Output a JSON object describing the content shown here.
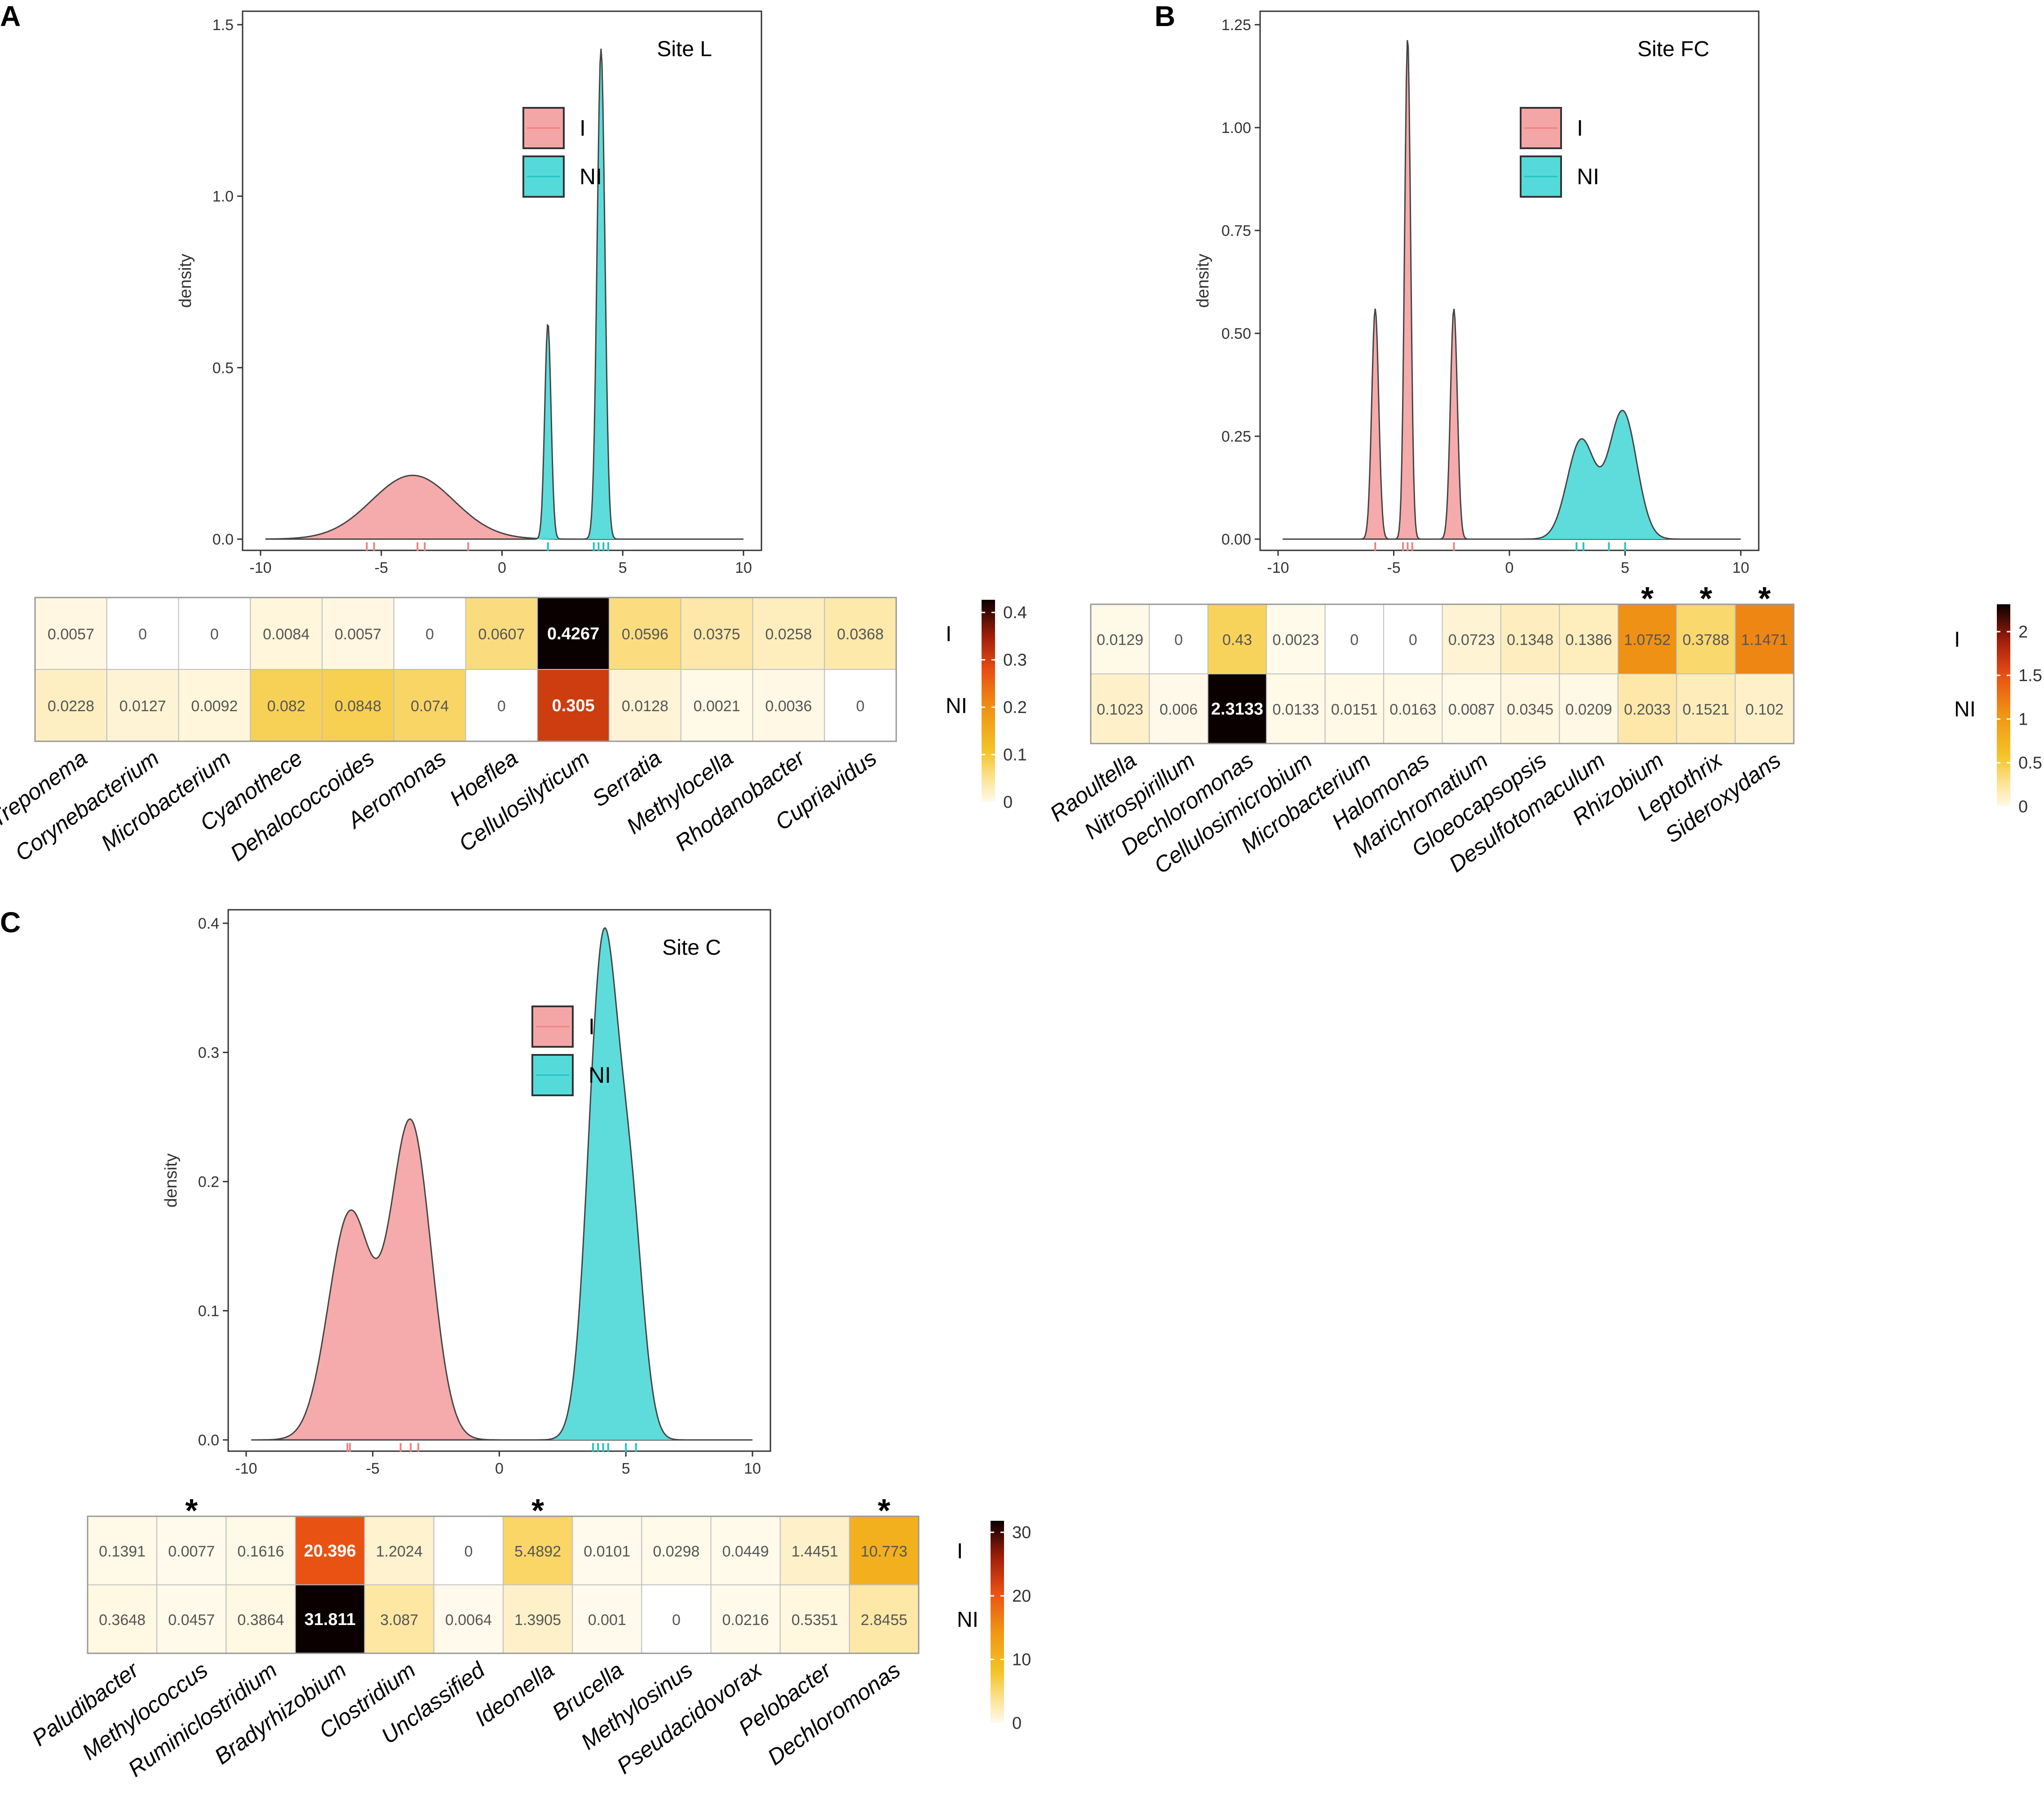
{
  "chart_data": [
    {
      "panel": "A",
      "type": "density",
      "site": "Site L",
      "ylabel": "density",
      "xlim": [
        -10,
        10
      ],
      "ylim": [
        0,
        1.5
      ],
      "xticks": [
        "-10",
        "-5",
        "0",
        "5",
        "10"
      ],
      "yticks": [
        "0.0",
        "0.5",
        "1.0",
        "1.5"
      ],
      "legend": [
        "I",
        "NI"
      ],
      "series": [
        {
          "name": "I",
          "color": "#F08080",
          "fill": "#F4A6A6",
          "components": [
            {
              "mu": -3.7,
              "sigma": 1.7,
              "h": 0.186
            }
          ],
          "rug": [
            -5.6,
            -5.3,
            -3.5,
            -3.2,
            -1.4
          ]
        },
        {
          "name": "NI",
          "color": "#20C5C5",
          "fill": "#55DADA",
          "components": [
            {
              "mu": 1.9,
              "sigma": 0.13,
              "h": 0.63
            },
            {
              "mu": 4.1,
              "sigma": 0.16,
              "h": 1.43
            }
          ],
          "rug": [
            1.9,
            3.8,
            4.0,
            4.2,
            4.4
          ]
        }
      ],
      "heatmap": {
        "rows": [
          "I",
          "NI"
        ],
        "genera": [
          "Treponema",
          "Corynebacterium",
          "Microbacterium",
          "Cyanothece",
          "Dehalococcoides",
          "Aeromonas",
          "Hoeflea",
          "Cellulosilyticum",
          "Serratia",
          "Methylocella",
          "Rhodanobacter",
          "Cupriavidus"
        ],
        "labels": [
          [
            "0.0057",
            "0",
            "0",
            "0.0084",
            "0.0057",
            "0",
            "0.0607",
            "0.4267",
            "0.0596",
            "0.0375",
            "0.0258",
            "0.0368"
          ],
          [
            "0.0228",
            "0.0127",
            "0.0092",
            "0.082",
            "0.0848",
            "0.074",
            "0",
            "0.305",
            "0.0128",
            "0.0021",
            "0.0036",
            "0"
          ]
        ],
        "values": [
          [
            0.0057,
            0,
            0,
            0.0084,
            0.0057,
            0,
            0.0607,
            0.4267,
            0.0596,
            0.0375,
            0.0258,
            0.0368
          ],
          [
            0.0228,
            0.0127,
            0.0092,
            0.082,
            0.0848,
            0.074,
            0,
            0.305,
            0.0128,
            0.0021,
            0.0036,
            0
          ]
        ],
        "colorbar_max": 0.4267,
        "colorbar_ticks": [
          0,
          0.1,
          0.2,
          0.3,
          0.4
        ],
        "colorbar_tick_labels": [
          "0",
          "0.1",
          "0.2",
          "0.3",
          "0.4"
        ],
        "stars": []
      }
    },
    {
      "panel": "B",
      "type": "density",
      "site": "Site FC",
      "ylabel": "density",
      "xlim": [
        -10,
        10
      ],
      "ylim": [
        0,
        1.25
      ],
      "xticks": [
        "-10",
        "-5",
        "0",
        "5",
        "10"
      ],
      "yticks": [
        "0.00",
        "0.25",
        "0.50",
        "0.75",
        "1.00",
        "1.25"
      ],
      "legend": [
        "I",
        "NI"
      ],
      "series": [
        {
          "name": "I",
          "color": "#F08080",
          "fill": "#F4A6A6",
          "components": [
            {
              "mu": -5.8,
              "sigma": 0.15,
              "h": 0.56
            },
            {
              "mu": -4.4,
              "sigma": 0.13,
              "h": 1.22
            },
            {
              "mu": -2.4,
              "sigma": 0.15,
              "h": 0.56
            }
          ],
          "rug": [
            -5.8,
            -4.6,
            -4.4,
            -4.2,
            -2.4
          ]
        },
        {
          "name": "NI",
          "color": "#20C5C5",
          "fill": "#55DADA",
          "components": [
            {
              "mu": 3.1,
              "sigma": 0.6,
              "h": 0.24
            },
            {
              "mu": 4.9,
              "sigma": 0.6,
              "h": 0.31
            }
          ],
          "rug": [
            2.9,
            3.2,
            4.3,
            5.0
          ]
        }
      ],
      "heatmap": {
        "rows": [
          "I",
          "NI"
        ],
        "genera": [
          "Raoultella",
          "Nitrospirillum",
          "Dechloromonas",
          "Cellulosimicrobium",
          "Microbacterium",
          "Halomonas",
          "Marichromatium",
          "Gloeocapsopsis",
          "Desulfotomaculum",
          "Rhizobium",
          "Leptothrix",
          "Sideroxydans"
        ],
        "labels": [
          [
            "0.0129",
            "0",
            "0.43",
            "0.0023",
            "0",
            "0",
            "0.0723",
            "0.1348",
            "0.1386",
            "1.0752",
            "0.3788",
            "1.1471"
          ],
          [
            "0.1023",
            "0.006",
            "2.3133",
            "0.0133",
            "0.0151",
            "0.0163",
            "0.0087",
            "0.0345",
            "0.0209",
            "0.2033",
            "0.1521",
            "0.102"
          ]
        ],
        "values": [
          [
            0.0129,
            0,
            0.43,
            0.0023,
            0,
            0,
            0.0723,
            0.1348,
            0.1386,
            1.0752,
            0.3788,
            1.1471
          ],
          [
            0.1023,
            0.006,
            2.3133,
            0.0133,
            0.0151,
            0.0163,
            0.0087,
            0.0345,
            0.0209,
            0.2033,
            0.1521,
            0.102
          ]
        ],
        "colorbar_max": 2.3133,
        "colorbar_ticks": [
          0,
          0.5,
          1,
          1.5,
          2
        ],
        "colorbar_tick_labels": [
          "0",
          "0.5",
          "1",
          "1.5",
          "2"
        ],
        "stars": [
          9,
          10,
          11
        ]
      }
    },
    {
      "panel": "C",
      "type": "density",
      "site": "Site C",
      "ylabel": "density",
      "xlim": [
        -10,
        10
      ],
      "ylim": [
        0,
        0.4
      ],
      "xticks": [
        "-10",
        "-5",
        "0",
        "5",
        "10"
      ],
      "yticks": [
        "0.0",
        "0.1",
        "0.2",
        "0.3",
        "0.4"
      ],
      "legend": [
        "I",
        "NI"
      ],
      "series": [
        {
          "name": "I",
          "color": "#F08080",
          "fill": "#F4A6A6",
          "components": [
            {
              "mu": -5.9,
              "sigma": 0.85,
              "h": 0.175
            },
            {
              "mu": -3.5,
              "sigma": 0.8,
              "h": 0.245
            }
          ],
          "rug": [
            -6.0,
            -5.9,
            -3.9,
            -3.5,
            -3.2
          ]
        },
        {
          "name": "NI",
          "color": "#20C5C5",
          "fill": "#55DADA",
          "components": [
            {
              "mu": 4.1,
              "sigma": 0.58,
              "h": 0.38
            },
            {
              "mu": 5.2,
              "sigma": 0.5,
              "h": 0.16
            }
          ],
          "rug": [
            3.7,
            3.9,
            4.1,
            4.3,
            5.0,
            5.4
          ]
        }
      ],
      "heatmap": {
        "rows": [
          "I",
          "NI"
        ],
        "genera": [
          "Paludibacter",
          "Methylococcus",
          "Ruminiclostridium",
          "Bradyrhizobium",
          "Clostridium",
          "Unclassified",
          "Ideonella",
          "Brucella",
          "Methylosinus",
          "Pseudacidovorax",
          "Pelobacter",
          "Dechloromonas"
        ],
        "labels": [
          [
            "0.1391",
            "0.0077",
            "0.1616",
            "20.396",
            "1.2024",
            "0",
            "5.4892",
            "0.0101",
            "0.0298",
            "0.0449",
            "1.4451",
            "10.773"
          ],
          [
            "0.3648",
            "0.0457",
            "0.3864",
            "31.811",
            "3.087",
            "0.0064",
            "1.3905",
            "0.001",
            "0",
            "0.0216",
            "0.5351",
            "2.8455"
          ]
        ],
        "values": [
          [
            0.1391,
            0.0077,
            0.1616,
            20.396,
            1.2024,
            0,
            5.4892,
            0.0101,
            0.0298,
            0.0449,
            1.4451,
            10.773
          ],
          [
            0.3648,
            0.0457,
            0.3864,
            31.811,
            3.087,
            0.0064,
            1.3905,
            0.001,
            0,
            0.0216,
            0.5351,
            2.8455
          ]
        ],
        "colorbar_max": 31.811,
        "colorbar_ticks": [
          0,
          10,
          20,
          30
        ],
        "colorbar_tick_labels": [
          "0",
          "10",
          "20",
          "30"
        ],
        "stars": [
          1,
          6,
          11
        ]
      }
    }
  ]
}
